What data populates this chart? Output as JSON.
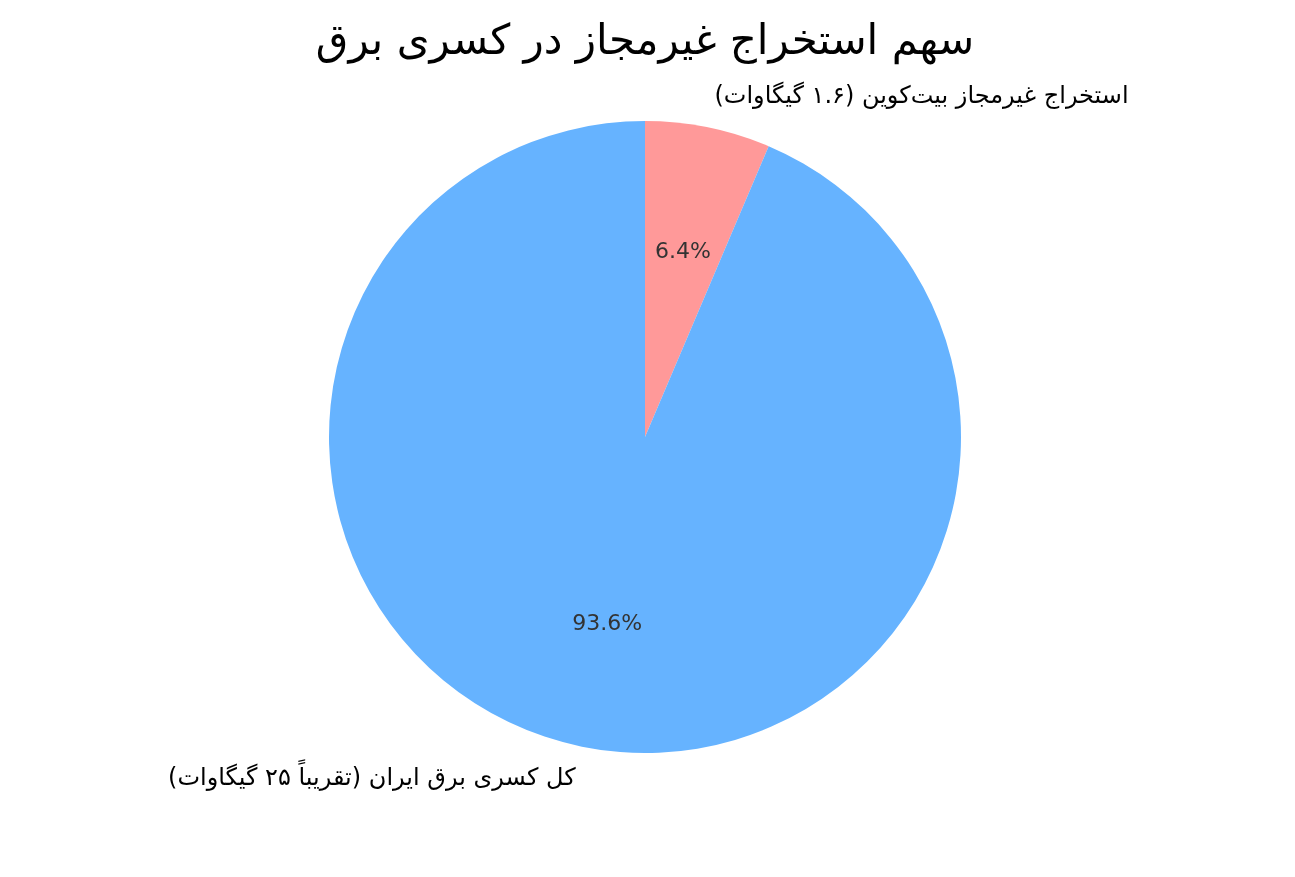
{
  "chart_data": {
    "type": "pie",
    "title": "سهم استخراج غیرمجاز در کسری برق",
    "categories": [
      "استخراج غیرمجاز بیت‌کوین (۱.۶ گیگاوات)",
      "کل کسری برق ایران (تقریباً ۲۵ گیگاوات)"
    ],
    "values": [
      6.4,
      93.6
    ],
    "colors": [
      "#ff9999",
      "#66b3ff"
    ],
    "value_labels": [
      "6.4%",
      "93.6%"
    ],
    "legend": false
  }
}
